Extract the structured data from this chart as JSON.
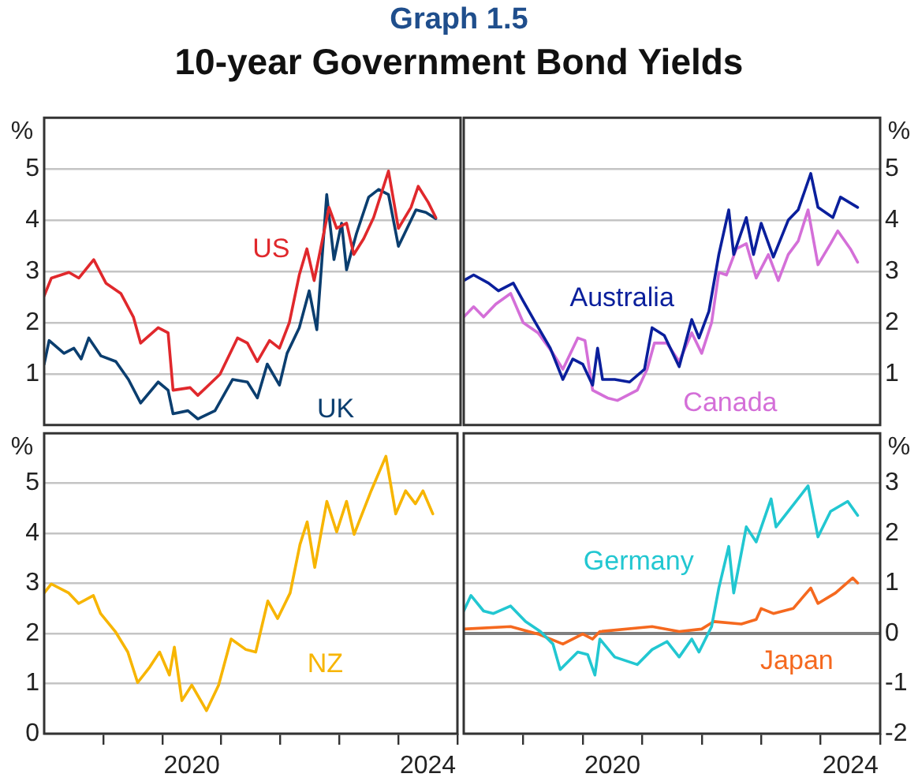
{
  "chart_data": [
    {
      "type": "line",
      "title": "Graph 1.5",
      "subtitle": "10-year Government Bond Yields",
      "ylabel": "%",
      "xlim": [
        "2018-01-01",
        "2025-01-01"
      ],
      "ylim": [
        0,
        6
      ],
      "yticks": [
        1,
        2,
        3,
        4,
        5
      ],
      "grid": "y",
      "tick_labels": "y",
      "marker": "none",
      "line_style": "solid",
      "series": [
        {
          "name": "US",
          "color": "#e0282c",
          "x": [
            "2018-01-01",
            "2018-02-15",
            "2018-06-01",
            "2018-08-01",
            "2018-11-01",
            "2019-01-15",
            "2019-04-15",
            "2019-07-01",
            "2019-08-15",
            "2019-12-01",
            "2020-02-01",
            "2020-03-01",
            "2020-06-15",
            "2020-08-01",
            "2020-12-15",
            "2021-04-01",
            "2021-06-01",
            "2021-08-01",
            "2021-10-15",
            "2021-12-15",
            "2022-02-15",
            "2022-04-15",
            "2022-06-01",
            "2022-07-15",
            "2022-10-15",
            "2022-12-01",
            "2023-02-01",
            "2023-03-15",
            "2023-05-15",
            "2023-07-15",
            "2023-10-15",
            "2023-12-15",
            "2024-03-01",
            "2024-04-15",
            "2024-06-15",
            "2024-08-01"
          ],
          "values": [
            2.52,
            2.87,
            2.98,
            2.87,
            3.23,
            2.77,
            2.57,
            2.11,
            1.6,
            1.9,
            1.8,
            0.68,
            0.73,
            0.58,
            0.99,
            1.7,
            1.6,
            1.24,
            1.65,
            1.5,
            2.0,
            2.93,
            3.44,
            2.82,
            4.25,
            3.84,
            3.94,
            3.33,
            3.64,
            4.05,
            4.96,
            3.84,
            4.25,
            4.66,
            4.35,
            4.05
          ]
        },
        {
          "name": "UK",
          "color": "#0b3e6f",
          "x": [
            "2018-01-01",
            "2018-02-01",
            "2018-05-01",
            "2018-07-01",
            "2018-08-15",
            "2018-10-01",
            "2018-12-15",
            "2019-03-15",
            "2019-06-01",
            "2019-08-15",
            "2019-12-01",
            "2020-02-01",
            "2020-03-01",
            "2020-06-01",
            "2020-08-01",
            "2020-11-15",
            "2021-03-01",
            "2021-06-01",
            "2021-08-01",
            "2021-10-01",
            "2021-12-15",
            "2022-02-01",
            "2022-04-15",
            "2022-06-15",
            "2022-08-01",
            "2022-10-01",
            "2022-11-15",
            "2023-01-01",
            "2023-02-01",
            "2023-04-01",
            "2023-06-15",
            "2023-08-15",
            "2023-10-15",
            "2023-12-15",
            "2024-04-01",
            "2024-06-01",
            "2024-08-01"
          ],
          "values": [
            1.19,
            1.65,
            1.4,
            1.5,
            1.29,
            1.7,
            1.35,
            1.24,
            0.89,
            0.43,
            0.84,
            0.68,
            0.22,
            0.28,
            0.12,
            0.28,
            0.89,
            0.84,
            0.53,
            1.19,
            0.78,
            1.4,
            1.9,
            2.62,
            1.86,
            4.5,
            3.23,
            3.94,
            3.03,
            3.74,
            4.45,
            4.6,
            4.5,
            3.49,
            4.2,
            4.15,
            4.03
          ]
        }
      ]
    },
    {
      "type": "line",
      "ylabel": "%",
      "xlim": [
        "2018-01-01",
        "2025-01-01"
      ],
      "y2lim": [
        0,
        6
      ],
      "y2ticks": [
        1,
        2,
        3,
        4,
        5
      ],
      "grid": "y",
      "tick_labels": "y2",
      "marker": "none",
      "line_style": "solid",
      "series": [
        {
          "name": "Australia",
          "color": "#0a1f9c",
          "axis": "y2",
          "x": [
            "2018-01-01",
            "2018-03-01",
            "2018-06-01",
            "2018-08-01",
            "2018-11-01",
            "2019-01-01",
            "2019-03-15",
            "2019-06-15",
            "2019-09-01",
            "2019-11-01",
            "2020-01-01",
            "2020-03-01",
            "2020-04-01",
            "2020-05-01",
            "2020-07-15",
            "2020-10-15",
            "2021-01-15",
            "2021-03-01",
            "2021-05-15",
            "2021-08-15",
            "2021-11-01",
            "2021-12-15",
            "2022-02-15",
            "2022-04-15",
            "2022-06-15",
            "2022-07-15",
            "2022-10-01",
            "2022-11-15",
            "2023-01-01",
            "2023-03-15",
            "2023-06-15",
            "2023-08-15",
            "2023-11-01",
            "2023-12-15",
            "2024-03-15",
            "2024-05-01",
            "2024-08-15"
          ],
          "values": [
            2.82,
            2.93,
            2.77,
            2.62,
            2.77,
            2.42,
            2.0,
            1.5,
            0.89,
            1.29,
            1.19,
            0.78,
            1.5,
            0.89,
            0.89,
            0.84,
            1.09,
            1.9,
            1.75,
            1.14,
            2.06,
            1.7,
            2.22,
            3.33,
            4.2,
            3.33,
            4.05,
            3.33,
            3.94,
            3.28,
            4.0,
            4.2,
            4.91,
            4.25,
            4.05,
            4.45,
            4.25
          ]
        },
        {
          "name": "Canada",
          "color": "#d46fd8",
          "axis": "y2",
          "x": [
            "2018-01-01",
            "2018-03-01",
            "2018-05-01",
            "2018-07-15",
            "2018-10-15",
            "2019-01-01",
            "2019-04-01",
            "2019-07-01",
            "2019-09-01",
            "2019-12-01",
            "2020-01-15",
            "2020-03-01",
            "2020-06-01",
            "2020-08-01",
            "2020-12-01",
            "2021-02-01",
            "2021-03-15",
            "2021-06-01",
            "2021-08-15",
            "2021-11-01",
            "2022-01-01",
            "2022-03-01",
            "2022-04-15",
            "2022-06-01",
            "2022-08-01",
            "2022-10-01",
            "2022-12-01",
            "2023-02-15",
            "2023-04-15",
            "2023-06-15",
            "2023-08-15",
            "2023-10-15",
            "2023-12-15",
            "2024-03-01",
            "2024-04-15",
            "2024-07-01",
            "2024-08-15"
          ],
          "values": [
            2.11,
            2.31,
            2.11,
            2.36,
            2.57,
            2.0,
            1.8,
            1.4,
            1.09,
            1.7,
            1.65,
            0.68,
            0.53,
            0.48,
            0.68,
            1.09,
            1.6,
            1.6,
            1.24,
            1.8,
            1.4,
            2.0,
            2.98,
            2.93,
            3.44,
            3.54,
            2.87,
            3.33,
            2.82,
            3.33,
            3.59,
            4.2,
            3.13,
            3.54,
            3.79,
            3.44,
            3.18
          ]
        }
      ]
    },
    {
      "type": "line",
      "ylabel": "%",
      "xlim": [
        "2018-01-01",
        "2025-01-01"
      ],
      "ylim": [
        0,
        6
      ],
      "yticks": [
        0,
        1,
        2,
        3,
        4,
        5
      ],
      "xticks": [
        {
          "value": "2019-01-01",
          "label": null
        },
        {
          "value": "2020-01-01",
          "label": null
        },
        {
          "value": "2020-07-01",
          "label": "2020"
        },
        {
          "value": "2021-01-01",
          "label": null
        },
        {
          "value": "2022-01-01",
          "label": null
        },
        {
          "value": "2023-01-01",
          "label": null
        },
        {
          "value": "2024-01-01",
          "label": null
        },
        {
          "value": "2024-07-01",
          "label": "2024"
        },
        {
          "value": "2025-01-01",
          "label": null
        }
      ],
      "grid": "y",
      "marker": "none",
      "line_style": "solid",
      "series": [
        {
          "name": "NZ",
          "color": "#f7b500",
          "x": [
            "2018-01-01",
            "2018-02-15",
            "2018-06-01",
            "2018-08-01",
            "2018-11-01",
            "2018-12-15",
            "2019-03-15",
            "2019-06-01",
            "2019-08-01",
            "2019-10-15",
            "2019-12-15",
            "2020-02-15",
            "2020-03-15",
            "2020-05-01",
            "2020-07-01",
            "2020-10-01",
            "2020-12-15",
            "2021-03-01",
            "2021-06-01",
            "2021-08-01",
            "2021-10-15",
            "2021-12-15",
            "2022-03-01",
            "2022-05-01",
            "2022-06-15",
            "2022-08-01",
            "2022-10-15",
            "2022-12-15",
            "2023-02-15",
            "2023-04-01",
            "2023-07-15",
            "2023-10-15",
            "2023-12-15",
            "2024-02-15",
            "2024-04-15",
            "2024-06-01",
            "2024-08-01"
          ],
          "values": [
            2.81,
            2.99,
            2.81,
            2.6,
            2.76,
            2.4,
            2.04,
            1.63,
            1.02,
            1.33,
            1.63,
            1.17,
            1.73,
            0.66,
            0.97,
            0.46,
            0.97,
            1.89,
            1.68,
            1.63,
            2.65,
            2.3,
            2.81,
            3.78,
            4.23,
            3.32,
            4.64,
            4.03,
            4.64,
            3.98,
            4.85,
            5.54,
            4.39,
            4.85,
            4.59,
            4.85,
            4.39
          ]
        }
      ]
    },
    {
      "type": "line",
      "ylabel": "%",
      "xlim": [
        "2018-01-01",
        "2025-01-01"
      ],
      "y2lim": [
        -2,
        4
      ],
      "y2ticks": [
        -2,
        -1,
        0,
        1,
        2,
        3
      ],
      "xticks": [
        {
          "value": "2019-01-01",
          "label": null
        },
        {
          "value": "2020-01-01",
          "label": null
        },
        {
          "value": "2020-07-01",
          "label": "2020"
        },
        {
          "value": "2021-01-01",
          "label": null
        },
        {
          "value": "2022-01-01",
          "label": null
        },
        {
          "value": "2023-01-01",
          "label": null
        },
        {
          "value": "2024-01-01",
          "label": null
        },
        {
          "value": "2024-07-01",
          "label": "2024"
        },
        {
          "value": "2025-01-01",
          "label": null
        }
      ],
      "grid": "y",
      "tick_labels": "xy2",
      "marker": "none",
      "line_style": "solid",
      "ref_lines": [
        {
          "axis": "y2",
          "value": 0,
          "color": "#808080"
        }
      ],
      "series": [
        {
          "name": "Germany",
          "color": "#22c7d1",
          "axis": "y2",
          "x": [
            "2018-01-01",
            "2018-02-15",
            "2018-05-01",
            "2018-07-01",
            "2018-10-15",
            "2019-01-15",
            "2019-04-15",
            "2019-07-01",
            "2019-08-15",
            "2019-12-01",
            "2020-02-01",
            "2020-03-15",
            "2020-04-15",
            "2020-07-15",
            "2020-12-01",
            "2021-03-01",
            "2021-06-01",
            "2021-08-15",
            "2021-11-01",
            "2021-12-15",
            "2022-03-01",
            "2022-04-15",
            "2022-06-15",
            "2022-07-15",
            "2022-10-01",
            "2022-12-01",
            "2023-03-01",
            "2023-04-01",
            "2023-06-15",
            "2023-10-15",
            "2023-12-15",
            "2024-03-01",
            "2024-06-15",
            "2024-08-15"
          ],
          "values": [
            0.45,
            0.76,
            0.45,
            0.4,
            0.55,
            0.24,
            0.04,
            -0.21,
            -0.72,
            -0.37,
            -0.42,
            -0.83,
            -0.11,
            -0.47,
            -0.62,
            -0.32,
            -0.16,
            -0.47,
            -0.11,
            -0.37,
            0.14,
            0.91,
            1.74,
            0.81,
            2.13,
            1.83,
            2.69,
            2.13,
            2.44,
            2.95,
            1.93,
            2.44,
            2.64,
            2.36
          ]
        },
        {
          "name": "Japan",
          "color": "#f5691f",
          "axis": "y2",
          "x": [
            "2018-01-01",
            "2018-10-15",
            "2019-04-01",
            "2019-09-01",
            "2020-01-01",
            "2020-03-01",
            "2020-04-15",
            "2021-03-01",
            "2021-08-15",
            "2022-01-01",
            "2022-03-15",
            "2022-09-01",
            "2022-12-01",
            "2023-01-01",
            "2023-03-15",
            "2023-07-15",
            "2023-11-01",
            "2023-12-15",
            "2024-04-01",
            "2024-07-15",
            "2024-08-15"
          ],
          "values": [
            0.09,
            0.14,
            -0.01,
            -0.21,
            -0.01,
            -0.11,
            0.04,
            0.14,
            0.04,
            0.09,
            0.24,
            0.19,
            0.28,
            0.5,
            0.4,
            0.5,
            0.91,
            0.6,
            0.81,
            1.11,
            1.01
          ]
        }
      ]
    }
  ]
}
